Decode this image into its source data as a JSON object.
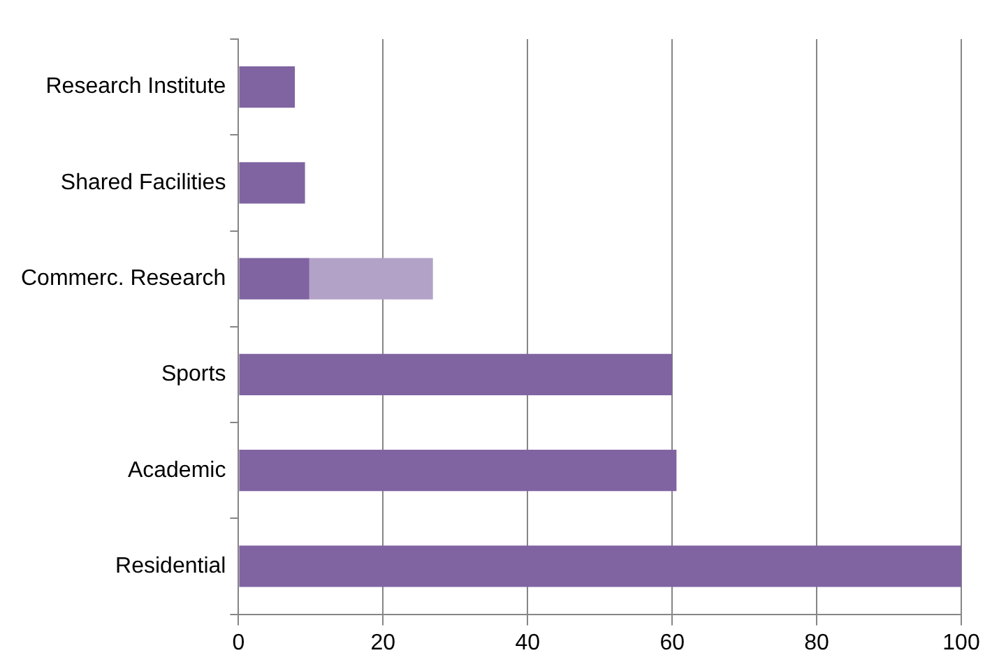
{
  "chart_data": {
    "type": "bar",
    "orientation": "horizontal",
    "stacked": true,
    "categories": [
      "Research Institute",
      "Shared Facilities",
      "Commerc. Research",
      "Sports",
      "Academic",
      "Residential"
    ],
    "series": [
      {
        "color": "#8064a2",
        "values": [
          7.8,
          9.2,
          9.8,
          60,
          60.6,
          100
        ]
      },
      {
        "color": "#b3a2c7",
        "values": [
          null,
          null,
          17.1,
          null,
          null,
          null
        ]
      }
    ],
    "xlim": [
      0,
      100
    ],
    "xticks": [
      0,
      20,
      40,
      60,
      80,
      100
    ],
    "grid": "x",
    "legend": false
  }
}
